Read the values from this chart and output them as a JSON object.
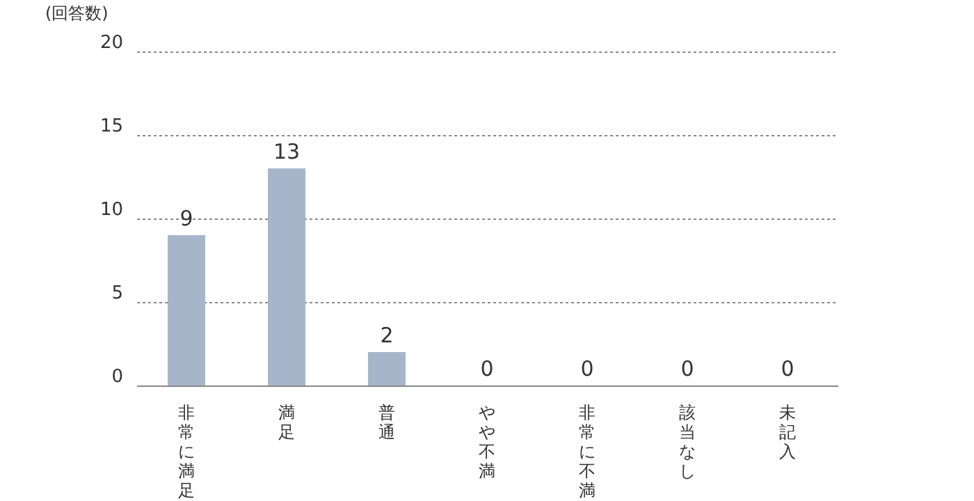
{
  "chart_data": {
    "type": "bar",
    "ylabel": "(回答数)",
    "categories": [
      "非常に満足",
      "満足",
      "普通",
      "やや不満",
      "非常に不満",
      "該当なし",
      "未記入"
    ],
    "values": [
      9,
      13,
      2,
      0,
      0,
      0,
      0
    ],
    "color": "#a7b5cb",
    "ylim": [
      0,
      20
    ],
    "yticks": [
      0,
      5,
      10,
      15,
      20
    ],
    "grid": "y",
    "data_labels": true
  }
}
